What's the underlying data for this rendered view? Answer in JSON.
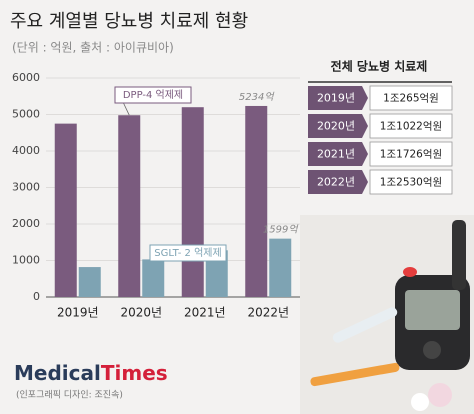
{
  "chart_data": {
    "type": "bar",
    "title": "주요 계열별 당뇨병 치료제 현황",
    "subtitle": "(단위 : 억원, 출처 : 아이큐비아)",
    "categories": [
      "2019년",
      "2020년",
      "2021년",
      "2022년"
    ],
    "series": [
      {
        "name": "DPP-4 억제제",
        "color": "#7a5b7e",
        "values": [
          4750,
          4980,
          5200,
          5234
        ],
        "value_labels": [
          null,
          null,
          null,
          "5234억"
        ]
      },
      {
        "name": "SGLT- 2 억제제",
        "color": "#7ea3b3",
        "values": [
          820,
          1030,
          1280,
          1599
        ],
        "value_labels": [
          null,
          null,
          null,
          "1599억"
        ]
      }
    ],
    "ylim": [
      0,
      6000
    ],
    "yticks": [
      0,
      1000,
      2000,
      3000,
      4000,
      5000,
      6000
    ],
    "grid": true
  },
  "table": {
    "title": "전체 당뇨병 치료제",
    "rows": [
      [
        "2019년",
        "1조265억원"
      ],
      [
        "2020년",
        "1조1022억원"
      ],
      [
        "2021년",
        "1조1726억원"
      ],
      [
        "2022년",
        "1조2530억원"
      ]
    ]
  },
  "footer": {
    "logo_a": "Medical",
    "logo_b": "Times",
    "credit": "(인포그래픽 디자인: 조진속)"
  }
}
